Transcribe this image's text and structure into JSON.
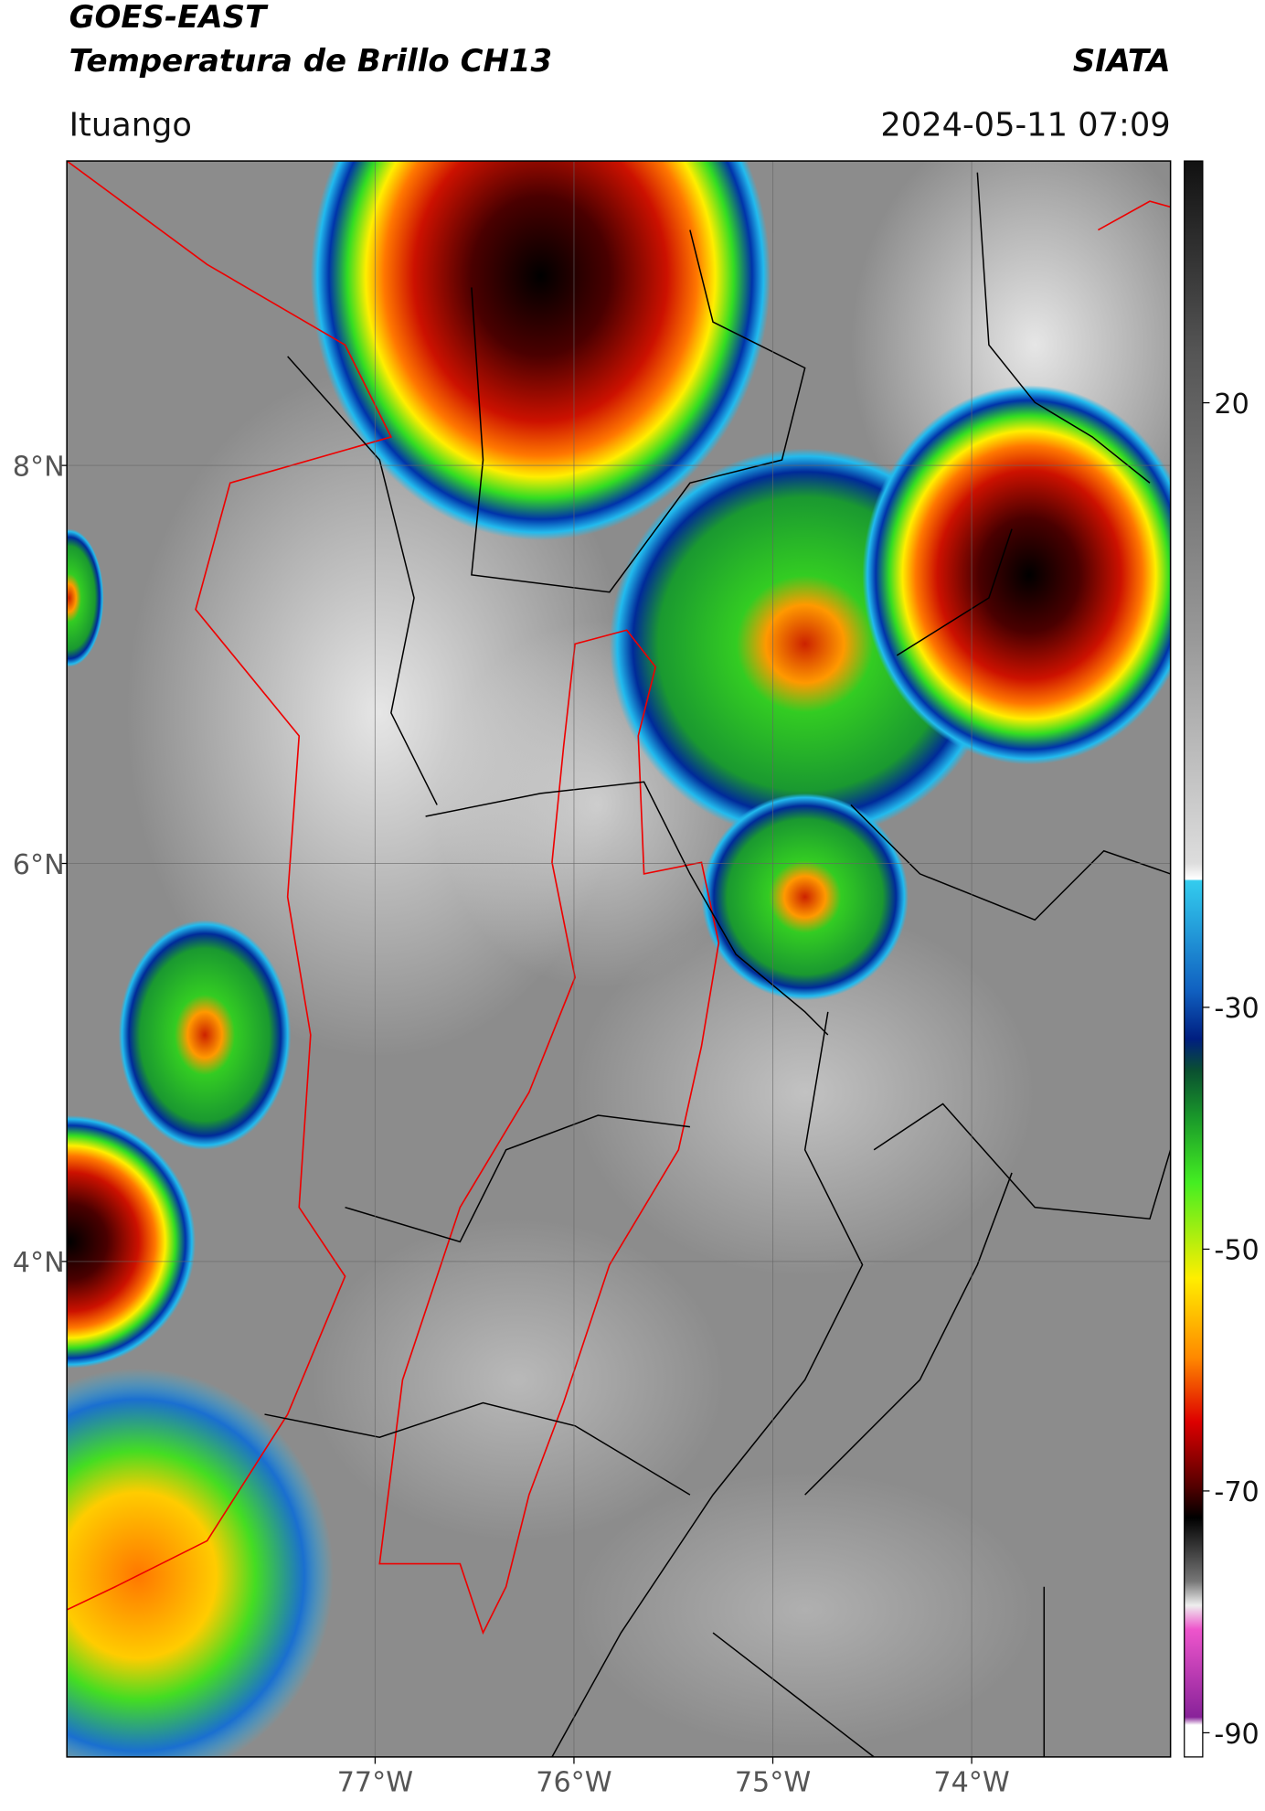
{
  "header": {
    "satellite": "GOES-EAST",
    "product": "Temperatura de Brillo CH13",
    "organization": "SIATA",
    "location": "Ituango",
    "datetime": "2024-05-11 07:09"
  },
  "map": {
    "lon_range": [
      -78.55,
      -73.0
    ],
    "lat_range": [
      1.51,
      9.53
    ],
    "lon_ticks": [
      {
        "value": -77,
        "label": "77°W"
      },
      {
        "value": -76,
        "label": "76°W"
      },
      {
        "value": -75,
        "label": "75°W"
      },
      {
        "value": -74,
        "label": "74°W"
      }
    ],
    "lat_ticks": [
      {
        "value": 8,
        "label": "8°N"
      },
      {
        "value": 6,
        "label": "6°N"
      },
      {
        "value": 4,
        "label": "4°N"
      }
    ]
  },
  "colorbar": {
    "range": [
      -92,
      40
    ],
    "ticks": [
      20,
      -30,
      -50,
      -70,
      -90
    ]
  }
}
